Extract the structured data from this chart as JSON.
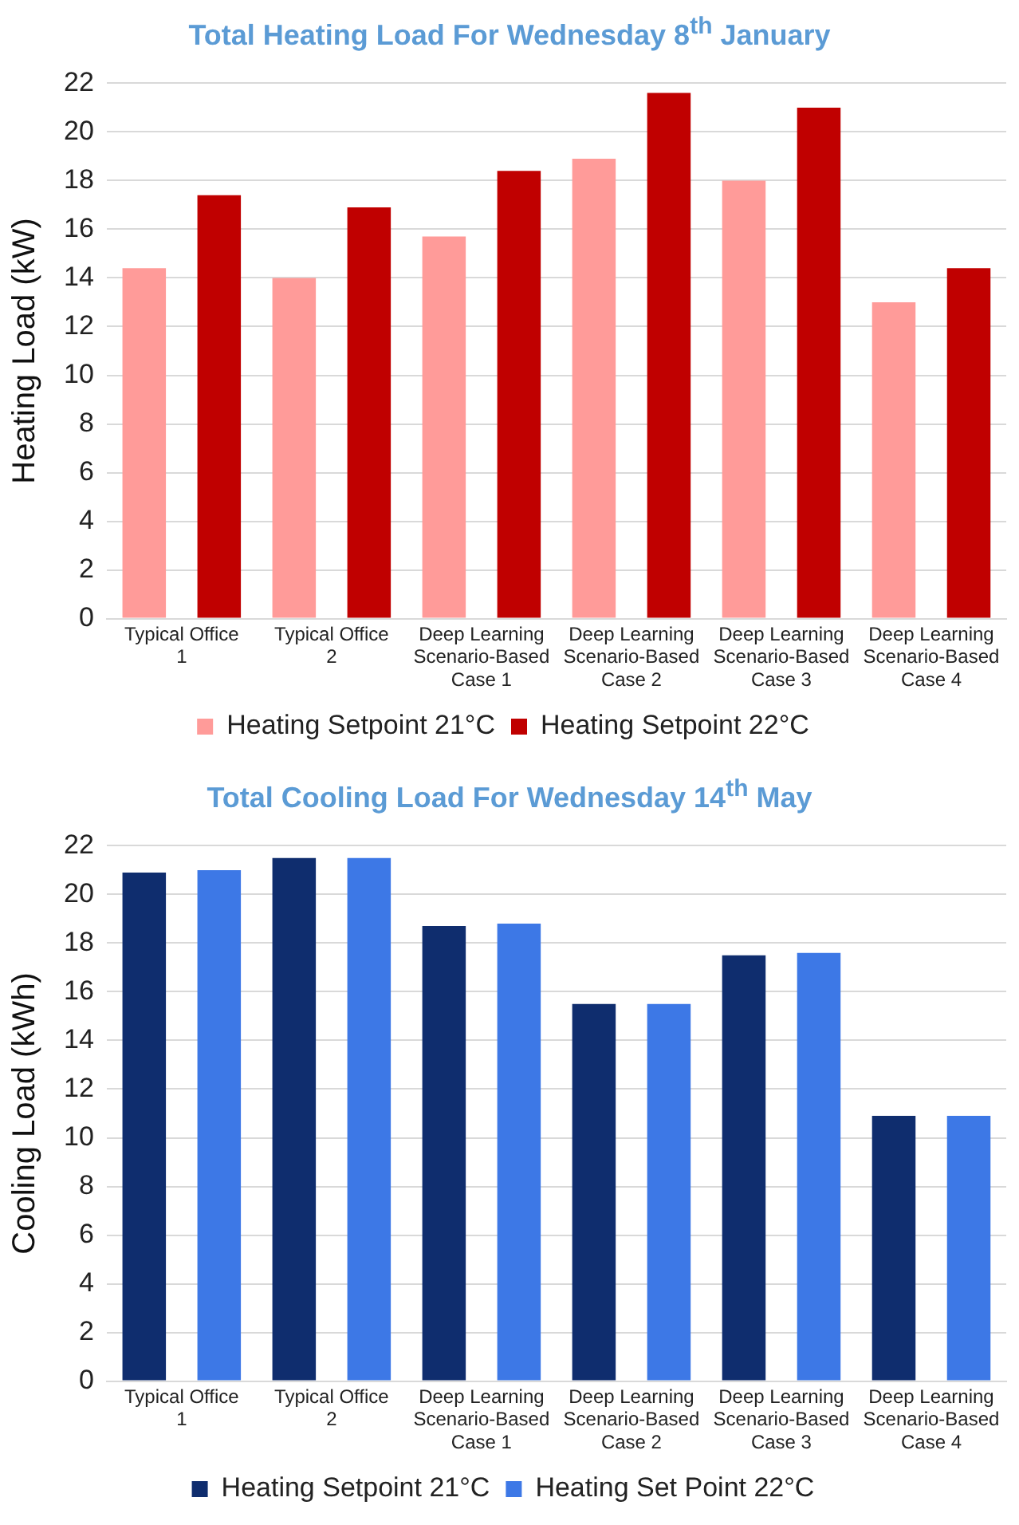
{
  "chart_data": [
    {
      "type": "bar",
      "title": "Total Heating Load For Wednesday 8$^{th}$ January",
      "ylabel": "Heating Load (kW)",
      "categories": [
        "Typical Office 1",
        "Typical Office 2",
        "Deep Learning Scenario-Based Case 1",
        "Deep Learning Scenario-Based Case 2",
        "Deep Learning Scenario-Based Case 3",
        "Deep Learning Scenario-Based Case 4"
      ],
      "series": [
        {
          "name": "Heating Setpoint 21°C",
          "color": "#ff9b99",
          "values": [
            14.4,
            14.0,
            15.7,
            18.9,
            18.0,
            13.0
          ]
        },
        {
          "name": "Heating Setpoint 22°C",
          "color": "#c00000",
          "values": [
            17.4,
            16.9,
            18.4,
            21.6,
            21.0,
            14.4
          ]
        }
      ],
      "ylim": [
        0,
        22
      ],
      "yticks": [
        0,
        2,
        4,
        6,
        8,
        10,
        12,
        14,
        16,
        18,
        20,
        22
      ],
      "grid": "y",
      "legend": "bottom"
    },
    {
      "type": "bar",
      "title": "Total Cooling Load For Wednesday 14$^{th}$ May",
      "ylabel": "Cooling Load (kWh)",
      "categories": [
        "Typical Office 1",
        "Typical Office 2",
        "Deep Learning Scenario-Based Case 1",
        "Deep Learning Scenario-Based Case 2",
        "Deep Learning Scenario-Based Case 3",
        "Deep Learning Scenario-Based Case 4"
      ],
      "series": [
        {
          "name": "Heating Setpoint 21°C",
          "color": "#0f2d6e",
          "values": [
            20.9,
            21.5,
            18.7,
            15.5,
            17.5,
            10.9
          ]
        },
        {
          "name": "Heating Set Point 22°C",
          "color": "#3d78e6",
          "values": [
            21.0,
            21.5,
            18.8,
            15.5,
            17.6,
            10.9
          ]
        }
      ],
      "ylim": [
        0,
        22
      ],
      "yticks": [
        0,
        2,
        4,
        6,
        8,
        10,
        12,
        14,
        16,
        18,
        20,
        22
      ],
      "grid": "y",
      "legend": "bottom"
    }
  ]
}
